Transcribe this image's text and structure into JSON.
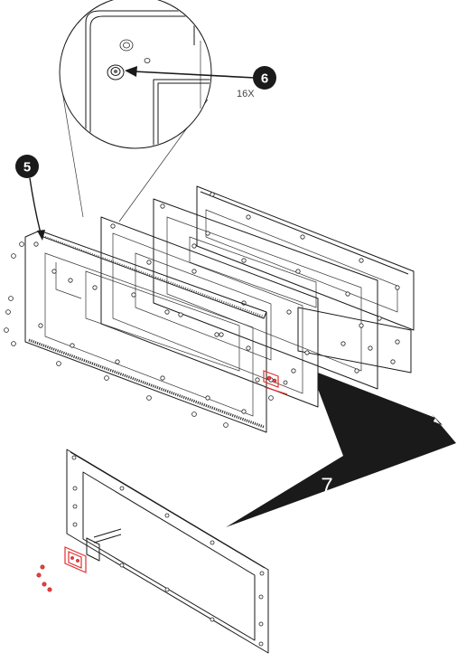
{
  "diagram": {
    "callouts": {
      "step5_label": "5",
      "step6_label": "6",
      "quantity_label": "16X",
      "step7_label": "7"
    },
    "colors": {
      "line": "#1a1a1a",
      "badge": "#1a1a1a",
      "highlight_parts": "#e03030",
      "arrow_fill": "#1a1a1a"
    }
  }
}
